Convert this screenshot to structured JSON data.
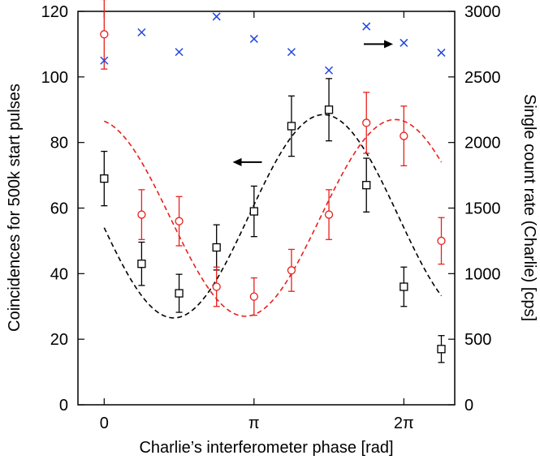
{
  "chart_data": {
    "type": "scatter",
    "title": "",
    "xlabel": "Charlie’s interferometer phase [rad]",
    "ylabel_left": "Coincidences for 500k start pulses",
    "ylabel_right": "Single count rate (Charlie) [cps]",
    "xlim": [
      -0.55,
      7.35
    ],
    "ylim_left": [
      0,
      120
    ],
    "ylim_right": [
      0,
      3000
    ],
    "x_ticks": [
      {
        "value": 0,
        "label": "0"
      },
      {
        "value": 3.1416,
        "label": "π"
      },
      {
        "value": 6.2832,
        "label": "2π"
      }
    ],
    "y_ticks_left": [
      0,
      20,
      40,
      60,
      80,
      100,
      120
    ],
    "y_ticks_right": [
      0,
      500,
      1000,
      1500,
      2000,
      2500,
      3000
    ],
    "grid": false,
    "colors": {
      "black_series": "#000000",
      "red_series": "#e8201c",
      "blue_series": "#2146e0"
    },
    "series": [
      {
        "name": "Coincidences (squares)",
        "axis": "left",
        "marker": "square",
        "x": [
          0,
          0.785,
          1.571,
          2.356,
          3.142,
          3.927,
          4.712,
          5.498,
          6.283,
          7.069
        ],
        "y": [
          69,
          43,
          34,
          48,
          59,
          85,
          90,
          67,
          36,
          17
        ],
        "yerr": [
          8.3,
          6.6,
          5.8,
          6.9,
          7.7,
          9.2,
          9.5,
          8.2,
          6.0,
          4.1
        ]
      },
      {
        "name": "Coincidences (circles)",
        "axis": "left",
        "marker": "circle",
        "x": [
          0,
          0.785,
          1.571,
          2.356,
          3.142,
          3.927,
          4.712,
          5.498,
          6.283,
          7.069
        ],
        "y": [
          113,
          58,
          56,
          36,
          33,
          41,
          58,
          86,
          82,
          50
        ],
        "yerr": [
          10.6,
          7.6,
          7.5,
          6.0,
          5.7,
          6.4,
          7.6,
          9.3,
          9.1,
          7.1
        ]
      },
      {
        "name": "Single count rate (crosses)",
        "axis": "right",
        "marker": "cross",
        "x": [
          0,
          0.785,
          1.571,
          2.356,
          3.142,
          3.927,
          4.712,
          5.498,
          6.283,
          7.069
        ],
        "y": [
          2625,
          2840,
          2690,
          2960,
          2790,
          2690,
          2550,
          2885,
          2760,
          2685
        ]
      },
      {
        "name": "Fit (black dashed)",
        "axis": "left",
        "line": "dashed",
        "function": "cosine",
        "offset": 57.5,
        "amplitude": 31,
        "phase": 4.6,
        "x_range": [
          0,
          7.069
        ]
      },
      {
        "name": "Fit (red dashed)",
        "axis": "left",
        "line": "dashed",
        "function": "cosine",
        "offset": 57,
        "amplitude": 30,
        "phase": 6.1,
        "x_range": [
          0,
          7.069
        ]
      }
    ],
    "annotations": [
      {
        "type": "arrow",
        "direction": "left",
        "meaning": "black series uses left axis",
        "anchor_x": 3.0,
        "anchor_y_left": 74
      },
      {
        "type": "arrow",
        "direction": "right",
        "meaning": "blue series uses right axis",
        "anchor_x": 5.75,
        "anchor_y_left": 110
      }
    ]
  }
}
